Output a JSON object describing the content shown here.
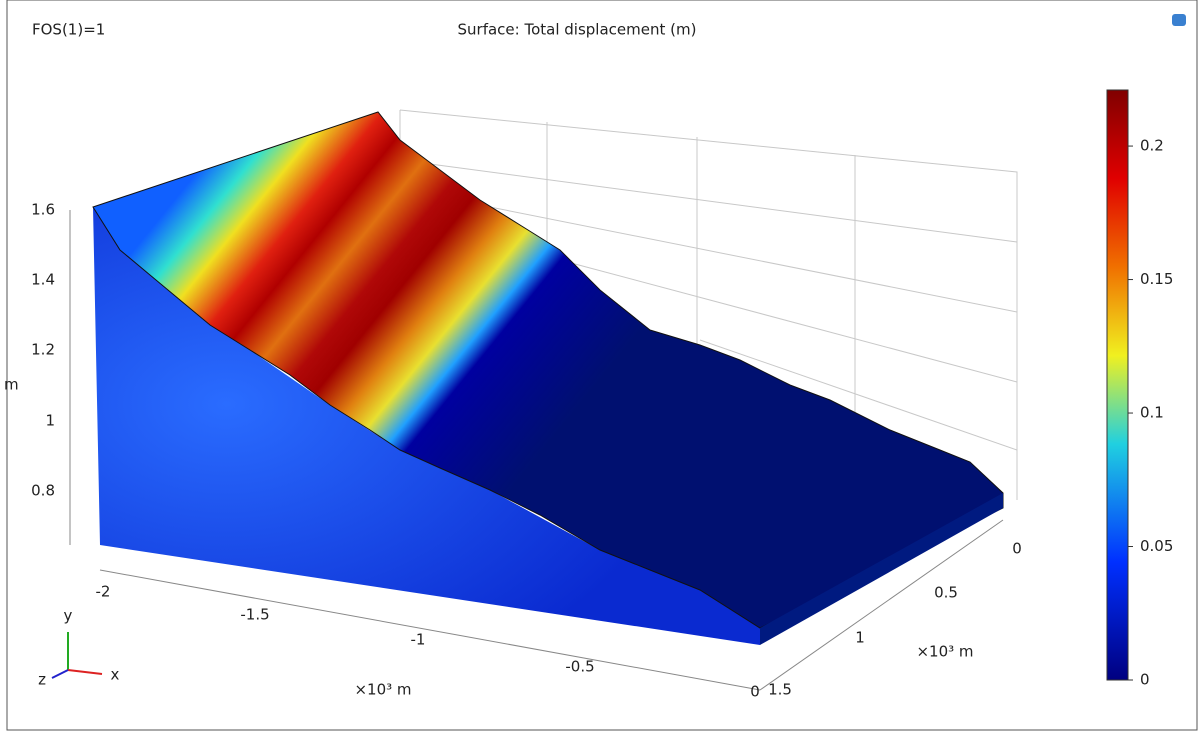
{
  "header": {
    "left": "FOS(1)=1",
    "title": "Surface: Total displacement (m)"
  },
  "z_axis": {
    "ticks": [
      1.6,
      1.4,
      1.2,
      1,
      0.8
    ],
    "label": "m"
  },
  "x_axis": {
    "ticks": [
      -2,
      -1.5,
      -1,
      -0.5,
      0
    ],
    "unit": "×10³ m"
  },
  "y_axis": {
    "ticks": [
      0,
      0.5,
      1,
      1.5
    ],
    "unit": "×10³ m"
  },
  "triad": {
    "y": "y",
    "x": "x",
    "z": "z"
  },
  "colorbar": {
    "range": [
      0,
      0.221
    ],
    "ticks": [
      0,
      0.05,
      0.1,
      0.15,
      0.2
    ]
  }
}
